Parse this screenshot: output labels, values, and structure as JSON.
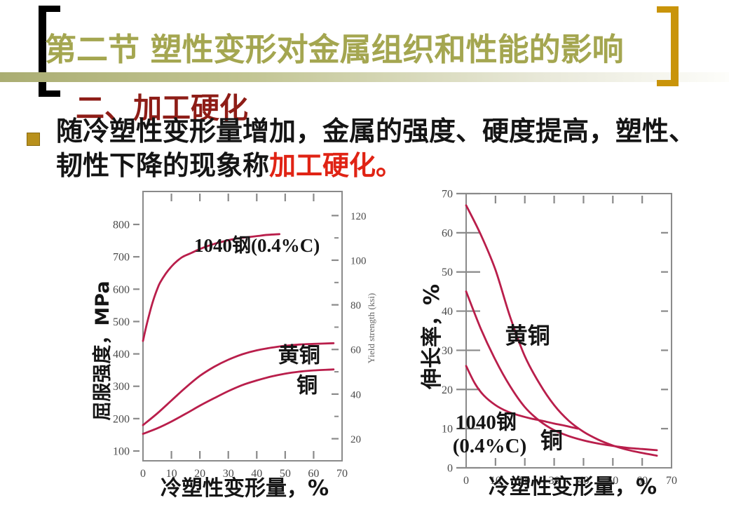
{
  "header": {
    "title": "第二节 塑性变形对金属组织和性能的影响"
  },
  "subtitle": {
    "text": "二、加工硬化"
  },
  "bullet": {
    "line1": "随冷塑性变形量增加，金属的强度、硬度提高，塑性、",
    "line2_black": "韧性下降的现象称",
    "line2_red": "加工硬化。"
  },
  "colors": {
    "title_olive": "#a4a650",
    "band_olive": "#b2b578",
    "bracket_black": "#000000",
    "bracket_gold": "#c9940a",
    "subtitle_maroon": "#8e1d17",
    "text_black": "#151515",
    "highlight_red": "#e02314",
    "bullet_gold": "#b8901c",
    "curve_crimson": "#b91e4b",
    "axis_gray": "#8a8a8a",
    "tick_text": "#4a4a4a"
  },
  "chart_data": [
    {
      "type": "line",
      "title": "",
      "xlabel": "冷塑性变形量，%",
      "ylabel": "屈服强度，MPa",
      "ylabel_right": "Yield strength (ksi)",
      "xlim": [
        0,
        70
      ],
      "x_ticks": [
        0,
        10,
        20,
        30,
        40,
        50,
        60,
        70
      ],
      "ylim": [
        70,
        900
      ],
      "y_ticks": [
        100,
        200,
        300,
        400,
        500,
        600,
        700,
        800
      ],
      "right_axis": {
        "unit": "ksi",
        "mpa_per_unit": 6.895,
        "major_ticks": [
          20,
          40,
          60,
          80,
          100,
          120
        ],
        "minor_ticks": [
          30,
          50,
          70,
          90,
          110
        ]
      },
      "grid": false,
      "series": [
        {
          "name": "1040钢(0.4%C)",
          "x": [
            0,
            1,
            2,
            3,
            4,
            5,
            6,
            8,
            10,
            12,
            14,
            17,
            20,
            24,
            28,
            32,
            36,
            40,
            44,
            48
          ],
          "y": [
            440,
            480,
            515,
            548,
            576,
            600,
            620,
            648,
            670,
            687,
            700,
            712,
            724,
            737,
            747,
            755,
            760,
            764,
            768,
            770
          ]
        },
        {
          "name": "黄铜",
          "x": [
            0,
            5,
            10,
            15,
            20,
            25,
            30,
            35,
            40,
            45,
            50,
            55,
            60,
            67
          ],
          "y": [
            180,
            216,
            256,
            296,
            332,
            360,
            382,
            399,
            411,
            419,
            425,
            429,
            431,
            433
          ]
        },
        {
          "name": "铜",
          "x": [
            0,
            5,
            10,
            15,
            20,
            25,
            30,
            35,
            40,
            45,
            50,
            55,
            60,
            67
          ],
          "y": [
            153,
            170,
            191,
            215,
            240,
            263,
            285,
            304,
            318,
            330,
            339,
            345,
            349,
            352
          ]
        }
      ],
      "annotations": [
        {
          "text": "1040钢(0.4%C)",
          "x": 18,
          "y": 716,
          "size": 27
        },
        {
          "text": "黄铜",
          "x": 47.5,
          "y": 374,
          "size": 30
        },
        {
          "text": "铜",
          "x": 54,
          "y": 281,
          "size": 30
        }
      ]
    },
    {
      "type": "line",
      "title": "",
      "xlabel": "冷塑性变形量，%",
      "ylabel": "伸长率，%",
      "xlim": [
        0,
        70
      ],
      "x_ticks": [
        0,
        10,
        20,
        30,
        40,
        50,
        60,
        70
      ],
      "ylim": [
        0,
        70
      ],
      "y_ticks": [
        0,
        10,
        20,
        30,
        40,
        50,
        60,
        70
      ],
      "right_minor_ticks": [
        10,
        20,
        30,
        40,
        50,
        60
      ],
      "grid": false,
      "series": [
        {
          "name": "黄铜",
          "x": [
            0,
            5,
            10,
            15,
            20,
            25,
            30,
            35,
            40,
            45,
            50,
            55,
            60,
            65
          ],
          "y": [
            67,
            59.5,
            50.5,
            38.5,
            28.5,
            21.5,
            16,
            12,
            9.2,
            7.2,
            5.7,
            4.6,
            3.8,
            3.1
          ]
        },
        {
          "name": "铜",
          "x": [
            0,
            5,
            10,
            15,
            20,
            25,
            30,
            35,
            40,
            45,
            50,
            55,
            60,
            65
          ],
          "y": [
            45,
            35.5,
            27.5,
            20.8,
            15.5,
            12,
            9.6,
            8.1,
            7,
            6.2,
            5.6,
            5.1,
            4.8,
            4.5
          ]
        },
        {
          "name": "1040钢(0.4%C)",
          "x": [
            0,
            3,
            6,
            10,
            14,
            18,
            22,
            26,
            30,
            34,
            38
          ],
          "y": [
            26,
            21.5,
            18.5,
            16,
            14.4,
            13.4,
            12.6,
            12,
            11.3,
            10.7,
            10
          ]
        }
      ],
      "annotations": [
        {
          "text": "黄铜",
          "x": 13.3,
          "y": 31.8,
          "size": 32
        },
        {
          "text": "1040钢",
          "x": -3.6,
          "y": 9.9,
          "size": 29
        },
        {
          "text": "(0.4%C)",
          "x": -4.6,
          "y": 3.9,
          "size": 29
        },
        {
          "text": "铜",
          "x": 25.3,
          "y": 5.0,
          "size": 32
        }
      ]
    }
  ]
}
